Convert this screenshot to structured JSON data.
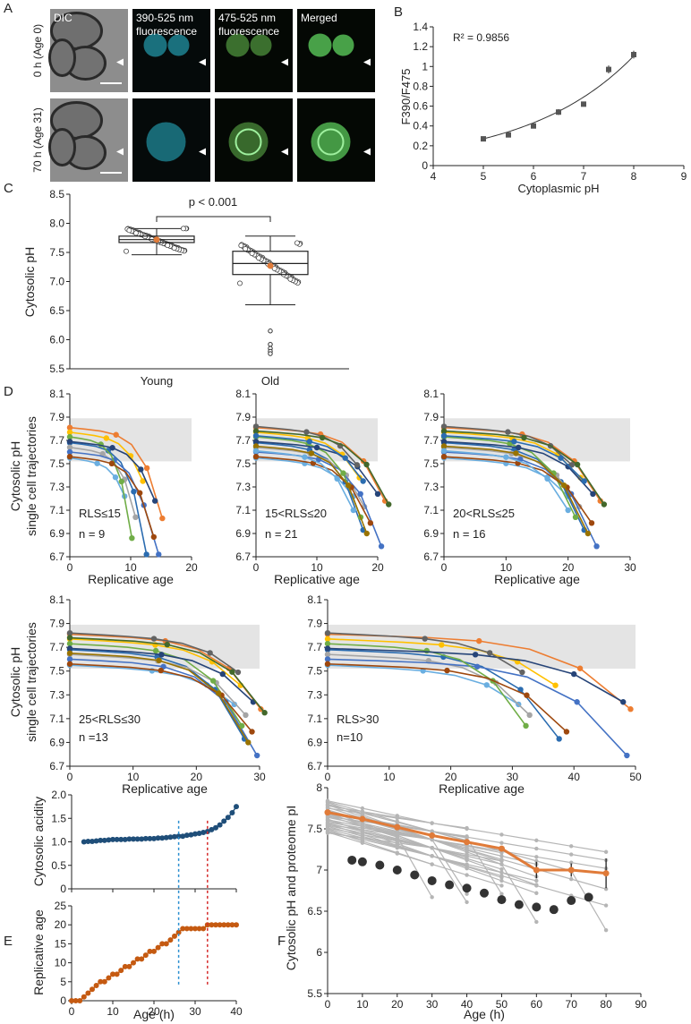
{
  "panel_letters": [
    "A",
    "B",
    "C",
    "D",
    "E",
    "F"
  ],
  "panel_a": {
    "columns": [
      "DIC",
      "390-525 nm\nfluorescence",
      "475-525 nm\nfluorescence",
      "Merged"
    ],
    "rows": [
      "0 h (Age 0)",
      "70 h (Age 31)"
    ]
  },
  "chart_data": [
    {
      "id": "B",
      "type": "scatter",
      "xlabel": "Cytoplasmic pH",
      "ylabel": "F390/F475",
      "annotation": "R² = 0.9856",
      "xlim": [
        4,
        9
      ],
      "ylim": [
        0,
        1.4
      ],
      "xticks": [
        "4",
        "5",
        "6",
        "7",
        "8",
        "9"
      ],
      "yticks": [
        "0",
        "0.2",
        "0.4",
        "0.6",
        "0.8",
        "1",
        "1.2",
        "1.4"
      ],
      "x": [
        5,
        5.5,
        6,
        6.5,
        7,
        7.5,
        8
      ],
      "y": [
        0.27,
        0.31,
        0.4,
        0.54,
        0.62,
        0.97,
        1.12
      ],
      "err": [
        0.01,
        0.01,
        0.01,
        0.03,
        0.02,
        0.04,
        0.04
      ],
      "fit": "exponential"
    },
    {
      "id": "C",
      "type": "box",
      "ylabel": "Cytosolic pH",
      "ylim": [
        5.5,
        8.5
      ],
      "yticks": [
        "5.5",
        "6.0",
        "6.5",
        "7.0",
        "7.5",
        "8.0",
        "8.5"
      ],
      "categories": [
        "Young",
        "Old"
      ],
      "annotation": "p < 0.001",
      "boxes": [
        {
          "name": "Young",
          "q1": 7.67,
          "median": 7.72,
          "q3": 7.78,
          "whisker_low": 7.46,
          "whisker_high": 7.91,
          "mean": 7.72
        },
        {
          "name": "Old",
          "q1": 7.12,
          "median": 7.31,
          "q3": 7.52,
          "whisker_low": 6.6,
          "whisker_high": 7.78,
          "mean": 7.27,
          "outliers": [
            6.15,
            5.92,
            5.85,
            5.8,
            5.76
          ]
        }
      ]
    },
    {
      "id": "D",
      "type": "line",
      "ylabel": "Cytosolic pH\nsingle cell trajectories",
      "xlabel": "Replicative age",
      "ylim": [
        6.7,
        8.1
      ],
      "yticks": [
        "6.7",
        "6.9",
        "7.1",
        "7.3",
        "7.5",
        "7.7",
        "7.9",
        "8.1"
      ],
      "band": [
        7.52,
        7.89
      ],
      "subplots": [
        {
          "group": "RLS≤15",
          "n": "n = 9",
          "xlim": [
            0,
            20
          ],
          "xticks": [
            "0",
            "10",
            "20"
          ]
        },
        {
          "group": "15<RLS≤20",
          "n": "n = 21",
          "xlim": [
            0,
            20
          ],
          "xticks": [
            "0",
            "10",
            "20"
          ]
        },
        {
          "group": "20<RLS≤25",
          "n": "n = 16",
          "xlim": [
            0,
            30
          ],
          "xticks": [
            "0",
            "10",
            "20",
            "30"
          ]
        },
        {
          "group": "25<RLS≤30",
          "n": "n =13",
          "xlim": [
            0,
            30
          ],
          "xticks": [
            "0",
            "10",
            "20",
            "30"
          ]
        },
        {
          "group": "RLS>30",
          "n": "n=10",
          "xlim": [
            0,
            50
          ],
          "xticks": [
            "0",
            "10",
            "20",
            "30",
            "40",
            "50"
          ]
        }
      ]
    },
    {
      "id": "E_top",
      "type": "line",
      "ylabel": "Cytosolic acidity",
      "xlim": [
        0,
        40
      ],
      "ylim": [
        0,
        2.0
      ],
      "yticks": [
        "0",
        "0.5",
        "1.0",
        "1.5",
        "2.0"
      ],
      "x": [
        3,
        4,
        5,
        6,
        7,
        8,
        9,
        10,
        11,
        12,
        13,
        14,
        15,
        16,
        17,
        18,
        19,
        20,
        21,
        22,
        23,
        24,
        25,
        26,
        27,
        28,
        29,
        30,
        31,
        32,
        33,
        34,
        35,
        36,
        37,
        38,
        39,
        40
      ],
      "y": [
        1.0,
        1.01,
        1.01,
        1.02,
        1.03,
        1.03,
        1.04,
        1.05,
        1.05,
        1.05,
        1.05,
        1.06,
        1.06,
        1.06,
        1.06,
        1.07,
        1.07,
        1.07,
        1.08,
        1.08,
        1.09,
        1.1,
        1.11,
        1.12,
        1.12,
        1.14,
        1.15,
        1.17,
        1.18,
        1.2,
        1.22,
        1.26,
        1.3,
        1.36,
        1.44,
        1.52,
        1.62,
        1.75
      ],
      "vlines": [
        {
          "x": 26,
          "color": "#2b8fd1"
        },
        {
          "x": 33,
          "color": "#d62c2c"
        }
      ]
    },
    {
      "id": "E_bottom",
      "type": "line",
      "ylabel": "Replicative age",
      "xlabel": "Age (h)",
      "xlim": [
        0,
        40
      ],
      "ylim": [
        0,
        25
      ],
      "yticks": [
        "0",
        "5",
        "10",
        "15",
        "20",
        "25"
      ],
      "xticks": [
        "0",
        "10",
        "20",
        "30",
        "40"
      ],
      "x": [
        0,
        1,
        2,
        3,
        4,
        5,
        6,
        7,
        8,
        9,
        10,
        11,
        12,
        13,
        14,
        15,
        16,
        17,
        18,
        19,
        20,
        21,
        22,
        23,
        24,
        25,
        26,
        27,
        28,
        29,
        30,
        31,
        32,
        33,
        34,
        35,
        36,
        37,
        38,
        39,
        40
      ],
      "y": [
        0,
        0,
        0,
        1,
        2,
        3,
        4,
        5,
        5,
        6,
        7,
        7,
        8,
        9,
        9,
        10,
        11,
        11,
        12,
        13,
        13,
        14,
        15,
        15,
        16,
        17,
        18,
        19,
        19,
        19,
        19,
        19,
        19,
        20,
        20,
        20,
        20,
        20,
        20,
        20,
        20
      ]
    },
    {
      "id": "F",
      "type": "line",
      "ylabel": "Cytosolic pH and proteome pI",
      "xlabel": "Age (h)",
      "xlim": [
        0,
        90
      ],
      "ylim": [
        5.5,
        8
      ],
      "yticks": [
        "5.5",
        "6",
        "6.5",
        "7",
        "7.5",
        "8"
      ],
      "xticks": [
        "0",
        "10",
        "20",
        "30",
        "40",
        "50",
        "60",
        "70",
        "80",
        "90"
      ],
      "mean_series": {
        "x": [
          0,
          10,
          20,
          30,
          40,
          50,
          60,
          70,
          80
        ],
        "y": [
          7.7,
          7.62,
          7.52,
          7.42,
          7.34,
          7.26,
          7.0,
          7.0,
          6.96
        ],
        "err": [
          0,
          0,
          0,
          0,
          0,
          0,
          0.1,
          0.08,
          0.18
        ]
      },
      "pI_series": {
        "x": [
          7,
          10,
          15,
          20,
          25,
          30,
          35,
          40,
          45,
          50,
          55,
          60,
          65,
          70,
          75
        ],
        "y": [
          7.12,
          7.1,
          7.06,
          7.0,
          6.94,
          6.87,
          6.82,
          6.78,
          6.72,
          6.64,
          6.58,
          6.55,
          6.52,
          6.63,
          6.67
        ]
      }
    }
  ]
}
